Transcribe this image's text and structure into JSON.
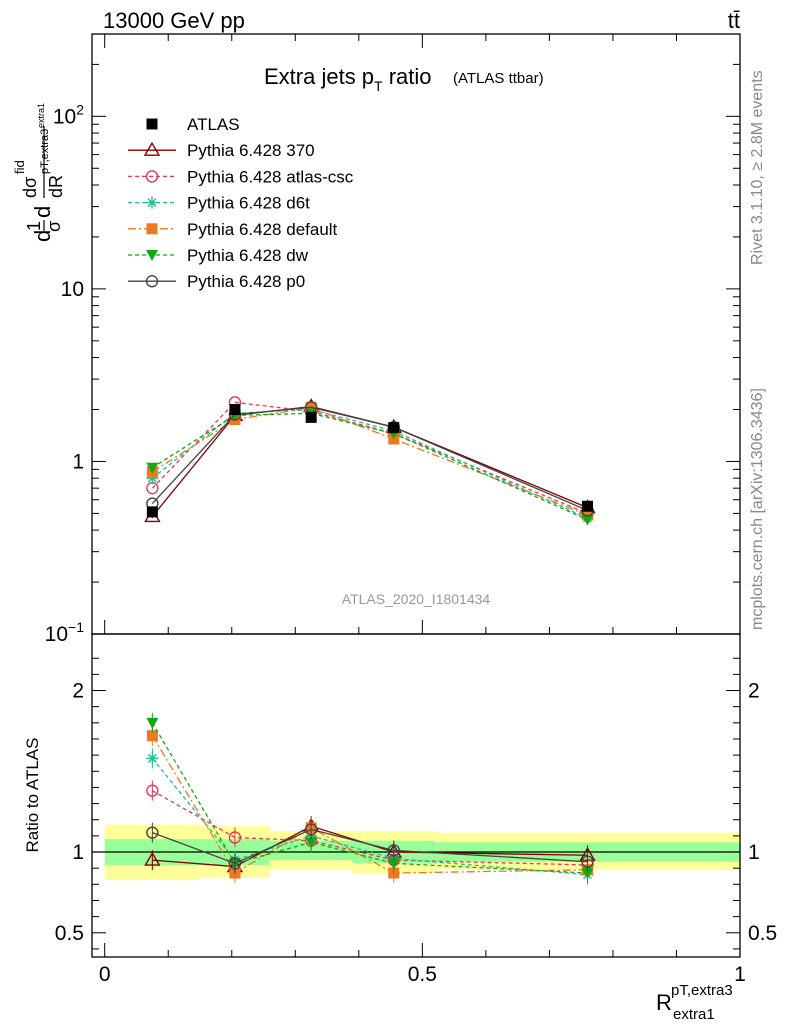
{
  "header": {
    "energy": "13000 GeV pp",
    "process": "tt̄"
  },
  "chart_data": [
    {
      "type": "line",
      "panel": "main",
      "title": "Extra jets p",
      "title_sub": "T",
      "title_tail": " ratio",
      "title_note": "(ATLAS ttbar)",
      "yscale": "log",
      "ylim": [
        0.1,
        300
      ],
      "xlim": [
        -0.02,
        1.0
      ],
      "yticks": [
        {
          "v": 0.1,
          "base": "10",
          "exp": "−1"
        },
        {
          "v": 1,
          "label": "1"
        },
        {
          "v": 10,
          "label": "10"
        },
        {
          "v": 100,
          "base": "10",
          "exp": "2"
        }
      ],
      "ylabel_parts": {
        "d": "d",
        "one": "1",
        "sigma": "σ",
        "dsig": "dσ",
        "fid": "fid",
        "dR": "dR",
        "sub": "pT,extra3",
        "subsub": "extra1"
      },
      "x": [
        0.075,
        0.205,
        0.325,
        0.455,
        0.76
      ],
      "series": [
        {
          "name": "ATLAS",
          "style": "data",
          "color": "#000000",
          "marker": "square-filled",
          "values": [
            0.51,
            2.0,
            1.8,
            1.57,
            0.55
          ],
          "err": [
            0.04,
            0.06,
            0.05,
            0.05,
            0.03
          ]
        },
        {
          "name": "Pythia 6.428 370",
          "style": "solid",
          "color": "#800000",
          "marker": "triangle-open",
          "values": [
            0.48,
            1.85,
            2.08,
            1.58,
            0.54
          ]
        },
        {
          "name": "Pythia 6.428 atlas-csc",
          "style": "dashed",
          "color": "#e8385c",
          "marker": "circle-open",
          "values": [
            0.7,
            2.2,
            1.95,
            1.45,
            0.5
          ]
        },
        {
          "name": "Pythia 6.428 d6t",
          "style": "dashed",
          "color": "#20c090",
          "marker": "star",
          "values": [
            0.8,
            1.9,
            2.0,
            1.5,
            0.47
          ]
        },
        {
          "name": "Pythia 6.428 default",
          "style": "dashdot",
          "color": "#ee7722",
          "marker": "square-filled",
          "values": [
            0.87,
            1.75,
            2.05,
            1.35,
            0.49
          ]
        },
        {
          "name": "Pythia 6.428 dw",
          "style": "dashed",
          "color": "#11a811",
          "marker": "triangle-down-filled",
          "values": [
            0.92,
            1.85,
            1.9,
            1.45,
            0.46
          ]
        },
        {
          "name": "Pythia 6.428 p0",
          "style": "solid",
          "color": "#444444",
          "marker": "circle-open",
          "values": [
            0.57,
            1.87,
            2.06,
            1.58,
            0.52
          ]
        }
      ],
      "annotation": "ATLAS_2020_I1801434"
    },
    {
      "type": "line",
      "panel": "ratio",
      "ylabel": "Ratio to ATLAS",
      "ylim": [
        0.35,
        2.35
      ],
      "xlim": [
        -0.02,
        1.0
      ],
      "yticks": [
        {
          "v": 0.5,
          "label": "0.5"
        },
        {
          "v": 1,
          "label": "1"
        },
        {
          "v": 2,
          "label": "2"
        }
      ],
      "xticks": [
        {
          "v": 0,
          "label": "0"
        },
        {
          "v": 0.5,
          "label": "0.5"
        },
        {
          "v": 1,
          "label": "1"
        }
      ],
      "xlabel": "R",
      "xlabel_sup": "pT,extra3",
      "xlabel_sub": "extra1",
      "bands": [
        {
          "x0": 0.0,
          "x1": 0.15,
          "y_inner": [
            0.92,
            1.08
          ],
          "y_outer": [
            0.83,
            1.17
          ]
        },
        {
          "x0": 0.15,
          "x1": 0.26,
          "y_inner": [
            0.92,
            1.08
          ],
          "y_outer": [
            0.84,
            1.16
          ]
        },
        {
          "x0": 0.26,
          "x1": 0.39,
          "y_inner": [
            0.95,
            1.07
          ],
          "y_outer": [
            0.89,
            1.13
          ]
        },
        {
          "x0": 0.39,
          "x1": 0.52,
          "y_inner": [
            0.93,
            1.07
          ],
          "y_outer": [
            0.87,
            1.13
          ]
        },
        {
          "x0": 0.52,
          "x1": 1.0,
          "y_inner": [
            0.94,
            1.06
          ],
          "y_outer": [
            0.89,
            1.12
          ]
        }
      ],
      "x": [
        0.075,
        0.205,
        0.325,
        0.455,
        0.76
      ],
      "series": [
        {
          "name": "Pythia 6.428 370",
          "values": [
            0.95,
            0.91,
            1.16,
            1.0,
            0.98
          ]
        },
        {
          "name": "Pythia 6.428 atlas-csc",
          "values": [
            1.38,
            1.09,
            1.07,
            0.95,
            0.92
          ]
        },
        {
          "name": "Pythia 6.428 d6t",
          "values": [
            1.58,
            0.95,
            1.1,
            0.96,
            0.86
          ]
        },
        {
          "name": "Pythia 6.428 default",
          "values": [
            1.72,
            0.87,
            1.15,
            0.87,
            0.89
          ]
        },
        {
          "name": "Pythia 6.428 dw",
          "values": [
            1.8,
            0.93,
            1.06,
            0.93,
            0.87
          ]
        },
        {
          "name": "Pythia 6.428 p0",
          "values": [
            1.12,
            0.93,
            1.14,
            1.01,
            0.94
          ]
        }
      ]
    }
  ],
  "side_labels": {
    "rivet": "Rivet 3.1.10, ≥ 2.8M events",
    "mcplots": "mcplots.cern.ch [arXiv:1306.3436]"
  },
  "colors": {
    "band_inner": "#99ff99",
    "band_outer": "#ffff99"
  }
}
